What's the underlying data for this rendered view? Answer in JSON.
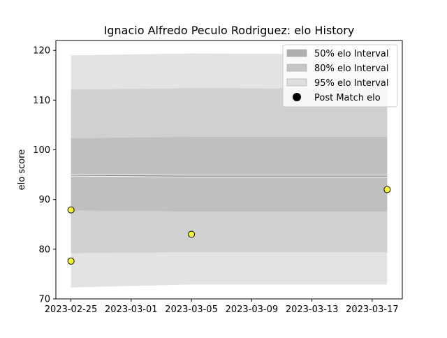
{
  "chart_data": {
    "type": "line",
    "title": "Ignacio Alfredo Peculo Rodriguez: elo History",
    "xlabel": "",
    "ylabel": "elo score",
    "xlim": [
      "2023-02-24",
      "2023-03-19"
    ],
    "ylim": [
      70,
      122
    ],
    "x_ticks": [
      "2023-02-25",
      "2023-03-01",
      "2023-03-05",
      "2023-03-09",
      "2023-03-13",
      "2023-03-17"
    ],
    "y_ticks": [
      70,
      80,
      90,
      100,
      110,
      120
    ],
    "grid": false,
    "legend_position": "top-right",
    "bands": [
      {
        "name": "95% elo Interval",
        "color": "#e3e3e3",
        "x": [
          "2023-02-25",
          "2023-03-05",
          "2023-03-18"
        ],
        "lower": [
          72.3,
          72.9,
          72.9
        ],
        "upper": [
          119.0,
          119.4,
          119.2
        ]
      },
      {
        "name": "80% elo Interval",
        "color": "#d0d0d0",
        "x": [
          "2023-02-25",
          "2023-03-05",
          "2023-03-18"
        ],
        "lower": [
          79.2,
          79.4,
          79.4
        ],
        "upper": [
          112.1,
          112.4,
          112.3
        ]
      },
      {
        "name": "50% elo Interval",
        "color": "#bfbfbf",
        "x": [
          "2023-02-25",
          "2023-03-05",
          "2023-03-18"
        ],
        "lower": [
          87.8,
          87.6,
          87.6
        ],
        "upper": [
          102.3,
          102.6,
          102.6
        ]
      }
    ],
    "mean_line": {
      "x": [
        "2023-02-25",
        "2023-03-05",
        "2023-03-18"
      ],
      "y": [
        94.9,
        94.7,
        94.7
      ],
      "color": "#8a8a8a"
    },
    "points": {
      "name": "Post Match elo",
      "color": "#ffff33",
      "legend_color": "#000000",
      "x": [
        "2023-02-25",
        "2023-02-25",
        "2023-03-05",
        "2023-03-18"
      ],
      "y": [
        87.9,
        77.6,
        83.0,
        92.0
      ]
    },
    "legend": [
      {
        "label": "50% elo Interval",
        "kind": "patch",
        "color": "#b0b0b0"
      },
      {
        "label": "80% elo Interval",
        "kind": "patch",
        "color": "#c6c6c6"
      },
      {
        "label": "95% elo Interval",
        "kind": "patch",
        "color": "#dedede"
      },
      {
        "label": "Post Match elo",
        "kind": "marker",
        "color": "#000000"
      }
    ]
  }
}
